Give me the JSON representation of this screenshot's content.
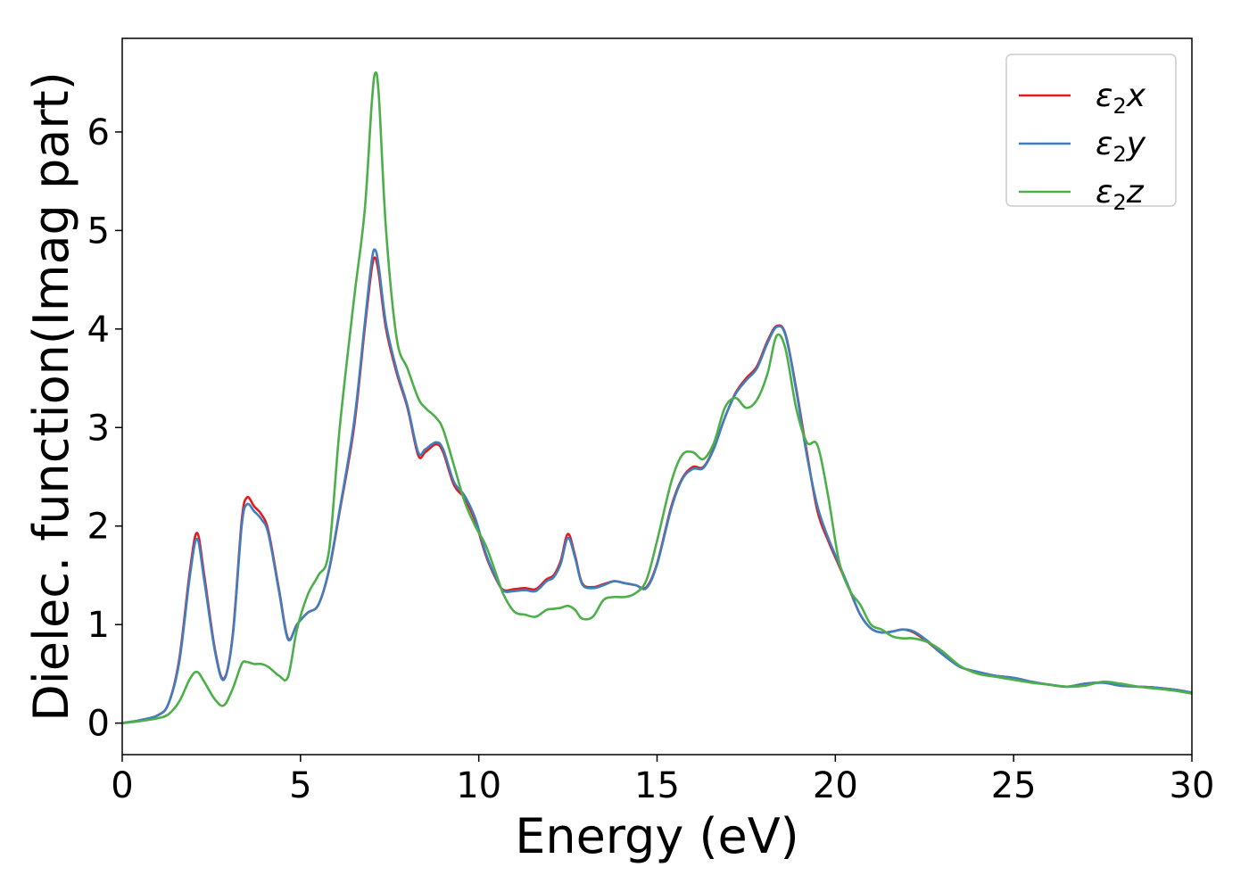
{
  "chart_data": {
    "type": "line",
    "title": "",
    "xlabel": "Energy (eV)",
    "ylabel": "Dielec. function(Imag part)",
    "xlim": [
      0,
      30
    ],
    "ylim": [
      -0.32,
      6.95
    ],
    "xticks": [
      0,
      5,
      10,
      15,
      20,
      25,
      30
    ],
    "yticks": [
      0,
      1,
      2,
      3,
      4,
      5,
      6
    ],
    "grid": false,
    "legend_position": "top-right",
    "series": [
      {
        "name": "ε₂x",
        "label_main": "ε",
        "label_sub": "2",
        "label_suffix": "x",
        "color": "#e41a1c",
        "x": [
          0,
          0.5,
          1.0,
          1.3,
          1.6,
          1.9,
          2.1,
          2.3,
          2.6,
          2.85,
          3.1,
          3.35,
          3.5,
          3.7,
          3.9,
          4.1,
          4.4,
          4.65,
          4.9,
          5.2,
          5.5,
          5.8,
          6.1,
          6.5,
          6.8,
          7.0,
          7.1,
          7.2,
          7.4,
          7.7,
          8.0,
          8.3,
          8.5,
          8.8,
          9.0,
          9.3,
          9.6,
          9.9,
          10.2,
          10.5,
          10.7,
          11.0,
          11.3,
          11.6,
          11.9,
          12.1,
          12.3,
          12.5,
          12.7,
          12.9,
          13.2,
          13.5,
          13.8,
          14.1,
          14.4,
          14.7,
          15.0,
          15.4,
          15.7,
          16.0,
          16.3,
          16.6,
          16.9,
          17.2,
          17.5,
          17.8,
          18.1,
          18.35,
          18.6,
          18.9,
          19.2,
          19.5,
          19.8,
          20.1,
          20.4,
          20.7,
          21.0,
          21.3,
          21.6,
          21.9,
          22.2,
          22.6,
          23.0,
          23.5,
          24.0,
          24.5,
          25.0,
          25.5,
          26.0,
          26.5,
          27.0,
          27.5,
          28.0,
          28.5,
          29.0,
          29.5,
          30.0
        ],
        "y": [
          0.0,
          0.03,
          0.08,
          0.2,
          0.65,
          1.55,
          1.93,
          1.5,
          0.75,
          0.45,
          0.9,
          2.05,
          2.29,
          2.2,
          2.12,
          1.95,
          1.35,
          0.86,
          1.0,
          1.12,
          1.2,
          1.55,
          2.15,
          3.0,
          4.0,
          4.62,
          4.72,
          4.55,
          4.0,
          3.55,
          3.2,
          2.72,
          2.75,
          2.83,
          2.75,
          2.42,
          2.28,
          2.05,
          1.7,
          1.45,
          1.35,
          1.36,
          1.37,
          1.36,
          1.46,
          1.5,
          1.65,
          1.92,
          1.7,
          1.42,
          1.38,
          1.41,
          1.44,
          1.42,
          1.4,
          1.38,
          1.62,
          2.2,
          2.48,
          2.6,
          2.6,
          2.8,
          3.1,
          3.35,
          3.5,
          3.62,
          3.88,
          4.03,
          3.95,
          3.4,
          2.75,
          2.15,
          1.85,
          1.6,
          1.35,
          1.1,
          0.96,
          0.92,
          0.93,
          0.95,
          0.92,
          0.82,
          0.7,
          0.57,
          0.52,
          0.48,
          0.46,
          0.42,
          0.39,
          0.37,
          0.4,
          0.41,
          0.38,
          0.37,
          0.36,
          0.34,
          0.31
        ]
      },
      {
        "name": "ε₂y",
        "label_main": "ε",
        "label_sub": "2",
        "label_suffix": "y",
        "color": "#3f7fbf",
        "x": [
          0,
          0.5,
          1.0,
          1.3,
          1.6,
          1.9,
          2.1,
          2.3,
          2.6,
          2.85,
          3.1,
          3.35,
          3.5,
          3.7,
          3.9,
          4.1,
          4.4,
          4.65,
          4.9,
          5.2,
          5.5,
          5.8,
          6.1,
          6.5,
          6.8,
          7.0,
          7.1,
          7.2,
          7.4,
          7.7,
          8.0,
          8.3,
          8.5,
          8.8,
          9.0,
          9.3,
          9.6,
          9.9,
          10.2,
          10.5,
          10.7,
          11.0,
          11.3,
          11.6,
          11.9,
          12.1,
          12.3,
          12.5,
          12.7,
          12.9,
          13.2,
          13.5,
          13.8,
          14.1,
          14.4,
          14.7,
          15.0,
          15.4,
          15.7,
          16.0,
          16.3,
          16.6,
          16.9,
          17.2,
          17.5,
          17.8,
          18.1,
          18.35,
          18.6,
          18.9,
          19.2,
          19.5,
          19.8,
          20.1,
          20.4,
          20.7,
          21.0,
          21.3,
          21.6,
          21.9,
          22.2,
          22.6,
          23.0,
          23.5,
          24.0,
          24.5,
          25.0,
          25.5,
          26.0,
          26.5,
          27.0,
          27.5,
          28.0,
          28.5,
          29.0,
          29.5,
          30.0
        ],
        "y": [
          0.0,
          0.03,
          0.08,
          0.2,
          0.62,
          1.5,
          1.87,
          1.45,
          0.73,
          0.44,
          0.88,
          2.0,
          2.22,
          2.15,
          2.07,
          1.92,
          1.33,
          0.85,
          1.0,
          1.12,
          1.2,
          1.56,
          2.17,
          3.05,
          4.05,
          4.7,
          4.8,
          4.62,
          4.05,
          3.58,
          3.22,
          2.75,
          2.78,
          2.85,
          2.78,
          2.45,
          2.31,
          2.08,
          1.72,
          1.46,
          1.34,
          1.34,
          1.35,
          1.34,
          1.44,
          1.48,
          1.62,
          1.88,
          1.68,
          1.41,
          1.37,
          1.4,
          1.44,
          1.42,
          1.4,
          1.37,
          1.61,
          2.18,
          2.47,
          2.58,
          2.59,
          2.79,
          3.1,
          3.34,
          3.48,
          3.6,
          3.86,
          4.02,
          3.94,
          3.38,
          2.72,
          2.2,
          1.88,
          1.62,
          1.36,
          1.1,
          0.96,
          0.92,
          0.93,
          0.95,
          0.93,
          0.83,
          0.7,
          0.57,
          0.52,
          0.48,
          0.46,
          0.42,
          0.39,
          0.37,
          0.4,
          0.41,
          0.38,
          0.37,
          0.36,
          0.34,
          0.31
        ]
      },
      {
        "name": "ε₂z",
        "label_main": "ε",
        "label_sub": "2",
        "label_suffix": "z",
        "color": "#4daf4a",
        "x": [
          0,
          0.5,
          1.0,
          1.3,
          1.6,
          1.9,
          2.1,
          2.3,
          2.6,
          2.85,
          3.1,
          3.35,
          3.5,
          3.7,
          3.9,
          4.1,
          4.4,
          4.65,
          4.9,
          5.2,
          5.5,
          5.8,
          6.1,
          6.5,
          6.8,
          7.0,
          7.1,
          7.2,
          7.4,
          7.7,
          8.0,
          8.3,
          8.5,
          8.8,
          9.0,
          9.3,
          9.6,
          9.9,
          10.2,
          10.5,
          10.7,
          11.0,
          11.3,
          11.6,
          11.9,
          12.1,
          12.3,
          12.5,
          12.7,
          12.9,
          13.2,
          13.5,
          13.8,
          14.1,
          14.4,
          14.7,
          15.0,
          15.4,
          15.7,
          16.0,
          16.3,
          16.6,
          16.9,
          17.2,
          17.5,
          17.8,
          18.1,
          18.35,
          18.6,
          18.9,
          19.2,
          19.5,
          19.8,
          20.1,
          20.4,
          20.7,
          21.0,
          21.3,
          21.6,
          21.9,
          22.2,
          22.6,
          23.0,
          23.5,
          24.0,
          24.5,
          25.0,
          25.5,
          26.0,
          26.5,
          27.0,
          27.5,
          28.0,
          28.5,
          29.0,
          29.5,
          30.0
        ],
        "y": [
          0.0,
          0.02,
          0.05,
          0.09,
          0.22,
          0.45,
          0.52,
          0.42,
          0.24,
          0.18,
          0.35,
          0.6,
          0.62,
          0.6,
          0.6,
          0.57,
          0.48,
          0.47,
          0.95,
          1.3,
          1.5,
          1.75,
          3.0,
          4.3,
          5.2,
          6.3,
          6.6,
          6.35,
          5.0,
          3.9,
          3.6,
          3.3,
          3.2,
          3.1,
          2.98,
          2.62,
          2.25,
          2.0,
          1.8,
          1.5,
          1.3,
          1.13,
          1.1,
          1.08,
          1.15,
          1.16,
          1.17,
          1.19,
          1.15,
          1.06,
          1.08,
          1.25,
          1.28,
          1.28,
          1.32,
          1.45,
          1.85,
          2.45,
          2.72,
          2.75,
          2.68,
          2.85,
          3.2,
          3.3,
          3.2,
          3.28,
          3.55,
          3.93,
          3.8,
          3.2,
          2.85,
          2.82,
          2.3,
          1.65,
          1.35,
          1.2,
          1.0,
          0.95,
          0.88,
          0.86,
          0.86,
          0.82,
          0.73,
          0.58,
          0.5,
          0.47,
          0.44,
          0.41,
          0.39,
          0.37,
          0.38,
          0.42,
          0.4,
          0.37,
          0.35,
          0.33,
          0.3
        ]
      }
    ]
  }
}
